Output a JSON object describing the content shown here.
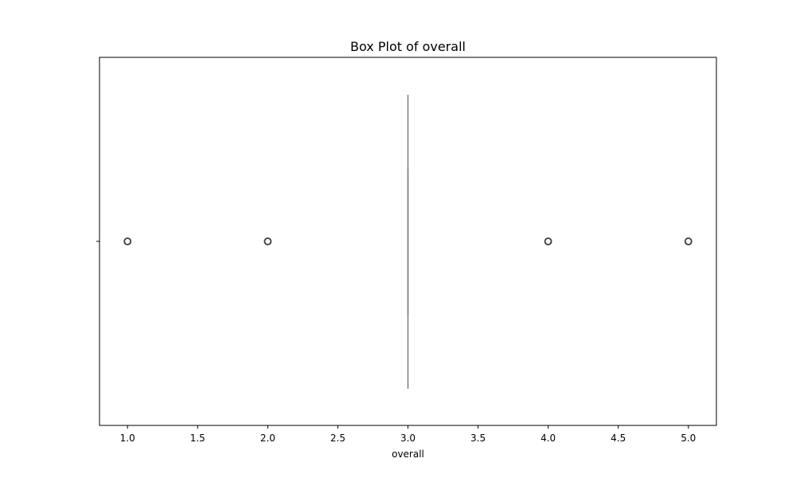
{
  "chart_data": {
    "type": "box",
    "title": "Box Plot of overall",
    "xlabel": "overall",
    "ylabel": "",
    "xlim": [
      0.8,
      5.2
    ],
    "xticks": [
      "1.0",
      "1.5",
      "2.0",
      "2.5",
      "3.0",
      "3.5",
      "4.0",
      "4.5",
      "5.0"
    ],
    "box": {
      "whisker_low": 3.0,
      "q1": 3.0,
      "median": 3.0,
      "q3": 3.0,
      "whisker_high": 3.0
    },
    "outliers": [
      1.0,
      2.0,
      4.0,
      5.0
    ],
    "grid": false,
    "colors": {
      "box_line": "#7f7f7f",
      "axes": "#000000"
    }
  }
}
